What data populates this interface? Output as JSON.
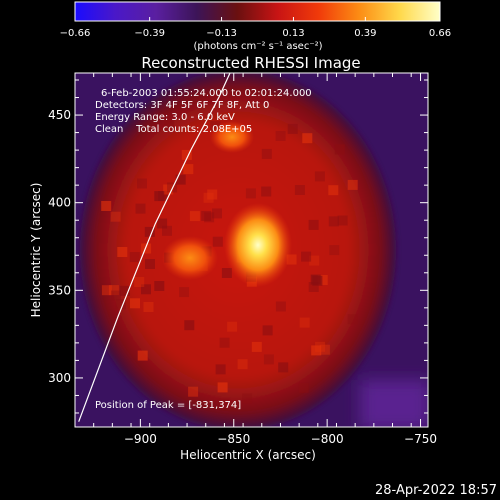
{
  "chart_data": {
    "type": "heatmap",
    "title": "Reconstructed RHESSI Image",
    "xlabel": "Heliocentric X (arcsec)",
    "ylabel": "Heliocentric Y (arcsec)",
    "xlim": [
      -935,
      -746
    ],
    "ylim": [
      272,
      474
    ],
    "x_ticks": [
      -900,
      -850,
      -800,
      -750
    ],
    "y_ticks": [
      300,
      350,
      400,
      450
    ],
    "x_tick_labels": [
      "−900",
      "−850",
      "−800",
      "−750"
    ],
    "y_tick_labels": [
      "300",
      "350",
      "400",
      "450"
    ],
    "colorbar": {
      "range": [
        -0.66,
        0.66
      ],
      "tick_values": [
        -0.66,
        -0.39,
        -0.13,
        0.13,
        0.39,
        0.66
      ],
      "tick_labels": [
        "−0.66",
        "−0.39",
        "−0.13",
        "0.13",
        "0.39",
        "0.66"
      ],
      "units_label": "(photons cm⁻² s⁻¹ asec⁻²)",
      "colors": [
        "#1a0cff",
        "#4a18c8",
        "#5a1fa0",
        "#3c1458",
        "#6a1010",
        "#c81414",
        "#f03a0a",
        "#fc8c14",
        "#ffd84a",
        "#ffffc8"
      ]
    },
    "info_lines": [
      "6-Feb-2003 01:55:24.000 to 02:01:24.000",
      "Detectors: 3F 4F 5F 6F 7F 8F, Att 0",
      "Energy Range: 3.0 - 6.0 keV",
      "Clean    Total counts: 2.08E+05"
    ],
    "peak_label": "Position of Peak = [-831,374]",
    "peak": {
      "x": -831,
      "y": 374,
      "value": 0.66
    },
    "secondary_peaks": [
      {
        "x": -838,
        "y": 453,
        "value": 0.42
      },
      {
        "x": -879,
        "y": 366,
        "value": 0.35
      }
    ],
    "limb_curve": [
      [
        -933,
        275
      ],
      [
        -912,
        335
      ],
      [
        -892,
        388
      ],
      [
        -873,
        430
      ],
      [
        -858,
        460
      ],
      [
        -852,
        474
      ]
    ],
    "disk_background_value": 0.22,
    "off_disk_value": -0.07
  },
  "footer": {
    "timestamp": "28-Apr-2022 18:57"
  }
}
